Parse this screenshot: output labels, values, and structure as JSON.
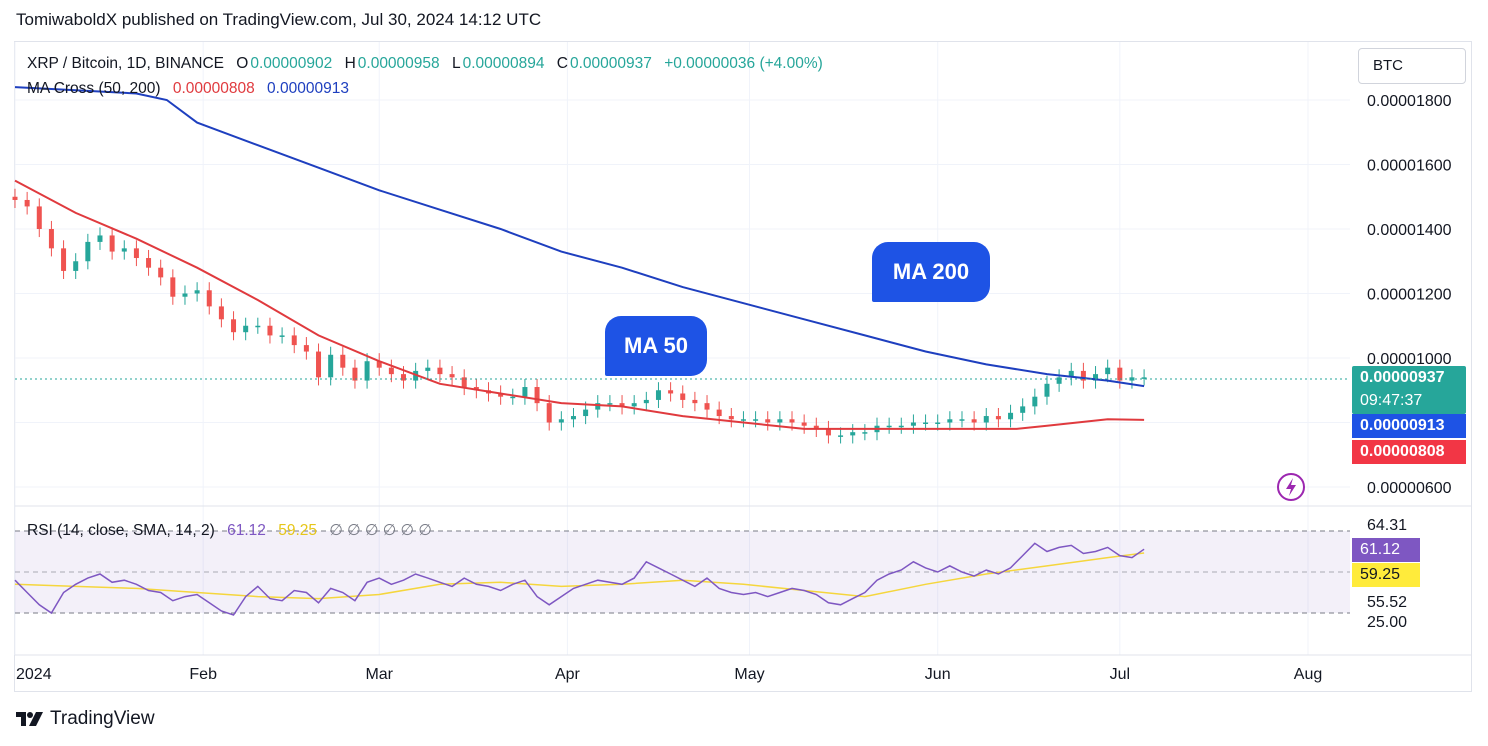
{
  "header": {
    "publisher_line": "TomiwaboldX published on TradingView.com, Jul 30, 2024 14:12 UTC"
  },
  "legend": {
    "symbol": "XRP / Bitcoin, 1D, BINANCE",
    "o_label": "O",
    "o_value": "0.00000902",
    "h_label": "H",
    "h_value": "0.00000958",
    "l_label": "L",
    "l_value": "0.00000894",
    "c_label": "C",
    "c_value": "0.00000937",
    "change": "+0.00000036 (+4.00%)",
    "ma_title": "MA Cross (50, 200)",
    "ma50_value": "0.00000808",
    "ma200_value": "0.00000913",
    "rsi_title": "RSI (14, close, SMA, 14, 2)",
    "rsi_value": "61.12",
    "rsi_sma_value": "59.25",
    "rsi_extras": "∅ ∅ ∅ ∅ ∅ ∅"
  },
  "unit_button": "BTC",
  "price_tags": {
    "last": "0.00000937",
    "countdown": "09:47:37",
    "ma200": "0.00000913",
    "ma50": "0.00000808"
  },
  "rsi_tags": {
    "rsi": "61.12",
    "sma": "59.25"
  },
  "annotations": {
    "ma50": "MA 50",
    "ma200": "MA 200"
  },
  "footer": {
    "brand": "TradingView"
  },
  "colors": {
    "up": "#26a69a",
    "down": "#ef5350",
    "ma50": "#e03a3e",
    "ma200": "#1e3fbf",
    "rsi_line": "#7e57c2",
    "rsi_sma": "#f5d63d",
    "accent": "#1e53e5"
  },
  "chart_data": {
    "type": "candlestick",
    "title": "XRP / Bitcoin, 1D, BINANCE",
    "price_axis_ticks": [
      "0.00001800",
      "0.00001600",
      "0.00001400",
      "0.00001200",
      "0.00001000",
      "0.00000600"
    ],
    "price_ylim": [
      5.4e-06,
      1.88e-05
    ],
    "time_axis_labels": [
      "2024",
      "Feb",
      "Mar",
      "Apr",
      "May",
      "Jun",
      "Jul",
      "Aug"
    ],
    "time_axis_days": [
      0,
      31,
      60,
      91,
      121,
      152,
      182,
      213
    ],
    "close_points": [
      [
        0,
        1.49
      ],
      [
        2,
        1.47
      ],
      [
        4,
        1.4
      ],
      [
        6,
        1.34
      ],
      [
        8,
        1.27
      ],
      [
        10,
        1.3
      ],
      [
        12,
        1.36
      ],
      [
        14,
        1.38
      ],
      [
        16,
        1.33
      ],
      [
        18,
        1.34
      ],
      [
        20,
        1.31
      ],
      [
        22,
        1.28
      ],
      [
        24,
        1.25
      ],
      [
        26,
        1.19
      ],
      [
        28,
        1.2
      ],
      [
        30,
        1.21
      ],
      [
        32,
        1.16
      ],
      [
        34,
        1.12
      ],
      [
        36,
        1.08
      ],
      [
        38,
        1.1
      ],
      [
        40,
        1.1
      ],
      [
        42,
        1.07
      ],
      [
        44,
        1.07
      ],
      [
        46,
        1.04
      ],
      [
        48,
        1.02
      ],
      [
        50,
        0.94
      ],
      [
        52,
        1.01
      ],
      [
        54,
        0.97
      ],
      [
        56,
        0.93
      ],
      [
        58,
        0.99
      ],
      [
        60,
        0.97
      ],
      [
        62,
        0.95
      ],
      [
        64,
        0.93
      ],
      [
        66,
        0.96
      ],
      [
        68,
        0.97
      ],
      [
        70,
        0.95
      ],
      [
        72,
        0.94
      ],
      [
        74,
        0.91
      ],
      [
        76,
        0.9
      ],
      [
        78,
        0.89
      ],
      [
        80,
        0.88
      ],
      [
        82,
        0.88
      ],
      [
        84,
        0.91
      ],
      [
        86,
        0.86
      ],
      [
        88,
        0.8
      ],
      [
        90,
        0.81
      ],
      [
        92,
        0.82
      ],
      [
        94,
        0.84
      ],
      [
        96,
        0.86
      ],
      [
        98,
        0.86
      ],
      [
        100,
        0.85
      ],
      [
        102,
        0.86
      ],
      [
        104,
        0.87
      ],
      [
        106,
        0.9
      ],
      [
        108,
        0.89
      ],
      [
        110,
        0.87
      ],
      [
        112,
        0.86
      ],
      [
        114,
        0.84
      ],
      [
        116,
        0.82
      ],
      [
        118,
        0.81
      ],
      [
        120,
        0.81
      ],
      [
        122,
        0.81
      ],
      [
        124,
        0.8
      ],
      [
        126,
        0.81
      ],
      [
        128,
        0.8
      ],
      [
        130,
        0.79
      ],
      [
        132,
        0.78
      ],
      [
        134,
        0.76
      ],
      [
        136,
        0.76
      ],
      [
        138,
        0.77
      ],
      [
        140,
        0.77
      ],
      [
        142,
        0.79
      ],
      [
        144,
        0.79
      ],
      [
        146,
        0.79
      ],
      [
        148,
        0.8
      ],
      [
        150,
        0.8
      ],
      [
        152,
        0.8
      ],
      [
        154,
        0.81
      ],
      [
        156,
        0.81
      ],
      [
        158,
        0.8
      ],
      [
        160,
        0.82
      ],
      [
        162,
        0.81
      ],
      [
        164,
        0.83
      ],
      [
        166,
        0.85
      ],
      [
        168,
        0.88
      ],
      [
        170,
        0.92
      ],
      [
        172,
        0.94
      ],
      [
        174,
        0.96
      ],
      [
        176,
        0.93
      ],
      [
        178,
        0.95
      ],
      [
        180,
        0.97
      ],
      [
        182,
        0.93
      ],
      [
        184,
        0.94
      ],
      [
        186,
        0.94
      ]
    ],
    "ma50_points": [
      [
        0,
        1.55
      ],
      [
        10,
        1.45
      ],
      [
        20,
        1.37
      ],
      [
        30,
        1.28
      ],
      [
        40,
        1.18
      ],
      [
        50,
        1.07
      ],
      [
        60,
        0.99
      ],
      [
        70,
        0.92
      ],
      [
        80,
        0.89
      ],
      [
        90,
        0.86
      ],
      [
        100,
        0.85
      ],
      [
        110,
        0.82
      ],
      [
        120,
        0.8
      ],
      [
        130,
        0.78
      ],
      [
        140,
        0.78
      ],
      [
        150,
        0.78
      ],
      [
        160,
        0.78
      ],
      [
        165,
        0.78
      ],
      [
        170,
        0.79
      ],
      [
        180,
        0.81
      ],
      [
        186,
        0.808
      ]
    ],
    "ma200_points": [
      [
        0,
        1.84
      ],
      [
        10,
        1.83
      ],
      [
        20,
        1.82
      ],
      [
        25,
        1.8
      ],
      [
        30,
        1.73
      ],
      [
        40,
        1.66
      ],
      [
        50,
        1.59
      ],
      [
        60,
        1.52
      ],
      [
        70,
        1.46
      ],
      [
        80,
        1.4
      ],
      [
        90,
        1.33
      ],
      [
        100,
        1.28
      ],
      [
        110,
        1.22
      ],
      [
        120,
        1.17
      ],
      [
        130,
        1.12
      ],
      [
        140,
        1.07
      ],
      [
        150,
        1.02
      ],
      [
        160,
        0.98
      ],
      [
        170,
        0.95
      ],
      [
        180,
        0.93
      ],
      [
        186,
        0.913
      ]
    ],
    "rsi": {
      "axis_ticks": [
        "64.31",
        "55.52",
        "25.00"
      ],
      "levels": [
        70,
        50,
        30
      ],
      "ylim": [
        20,
        80
      ],
      "points": [
        [
          0,
          46
        ],
        [
          2,
          40
        ],
        [
          4,
          34
        ],
        [
          6,
          30
        ],
        [
          8,
          40
        ],
        [
          10,
          44
        ],
        [
          12,
          47
        ],
        [
          14,
          49
        ],
        [
          16,
          45
        ],
        [
          18,
          46
        ],
        [
          20,
          44
        ],
        [
          22,
          41
        ],
        [
          24,
          40
        ],
        [
          26,
          36
        ],
        [
          28,
          38
        ],
        [
          30,
          39
        ],
        [
          32,
          35
        ],
        [
          34,
          31
        ],
        [
          36,
          29
        ],
        [
          38,
          38
        ],
        [
          40,
          43
        ],
        [
          42,
          37
        ],
        [
          44,
          36
        ],
        [
          46,
          41
        ],
        [
          48,
          40
        ],
        [
          50,
          35
        ],
        [
          52,
          42
        ],
        [
          54,
          40
        ],
        [
          56,
          36
        ],
        [
          58,
          45
        ],
        [
          60,
          47
        ],
        [
          62,
          44
        ],
        [
          64,
          46
        ],
        [
          66,
          49
        ],
        [
          68,
          47
        ],
        [
          70,
          45
        ],
        [
          72,
          43
        ],
        [
          74,
          47
        ],
        [
          76,
          44
        ],
        [
          78,
          43
        ],
        [
          80,
          41
        ],
        [
          82,
          44
        ],
        [
          84,
          46
        ],
        [
          86,
          38
        ],
        [
          88,
          34
        ],
        [
          90,
          38
        ],
        [
          92,
          42
        ],
        [
          94,
          44
        ],
        [
          96,
          46
        ],
        [
          98,
          45
        ],
        [
          100,
          44
        ],
        [
          102,
          47
        ],
        [
          104,
          55
        ],
        [
          106,
          52
        ],
        [
          108,
          49
        ],
        [
          110,
          46
        ],
        [
          112,
          43
        ],
        [
          114,
          47
        ],
        [
          116,
          42
        ],
        [
          118,
          40
        ],
        [
          120,
          39
        ],
        [
          122,
          40
        ],
        [
          124,
          38
        ],
        [
          126,
          40
        ],
        [
          128,
          42
        ],
        [
          130,
          41
        ],
        [
          132,
          39
        ],
        [
          134,
          35
        ],
        [
          136,
          34
        ],
        [
          138,
          37
        ],
        [
          140,
          40
        ],
        [
          142,
          46
        ],
        [
          144,
          49
        ],
        [
          146,
          51
        ],
        [
          148,
          55
        ],
        [
          150,
          52
        ],
        [
          152,
          50
        ],
        [
          154,
          53
        ],
        [
          156,
          50
        ],
        [
          158,
          48
        ],
        [
          160,
          51
        ],
        [
          162,
          49
        ],
        [
          164,
          52
        ],
        [
          166,
          58
        ],
        [
          168,
          64
        ],
        [
          170,
          60
        ],
        [
          172,
          62
        ],
        [
          174,
          63
        ],
        [
          176,
          59
        ],
        [
          178,
          60
        ],
        [
          180,
          62
        ],
        [
          182,
          58
        ],
        [
          184,
          57
        ],
        [
          186,
          61.12
        ]
      ],
      "sma_points": [
        [
          0,
          44
        ],
        [
          10,
          43
        ],
        [
          20,
          42
        ],
        [
          30,
          40
        ],
        [
          40,
          38
        ],
        [
          50,
          37
        ],
        [
          60,
          39
        ],
        [
          70,
          44
        ],
        [
          80,
          45
        ],
        [
          90,
          43
        ],
        [
          100,
          44
        ],
        [
          110,
          46
        ],
        [
          120,
          44
        ],
        [
          130,
          41
        ],
        [
          140,
          38
        ],
        [
          150,
          44
        ],
        [
          160,
          49
        ],
        [
          170,
          53
        ],
        [
          180,
          57
        ],
        [
          186,
          59.25
        ]
      ]
    }
  }
}
